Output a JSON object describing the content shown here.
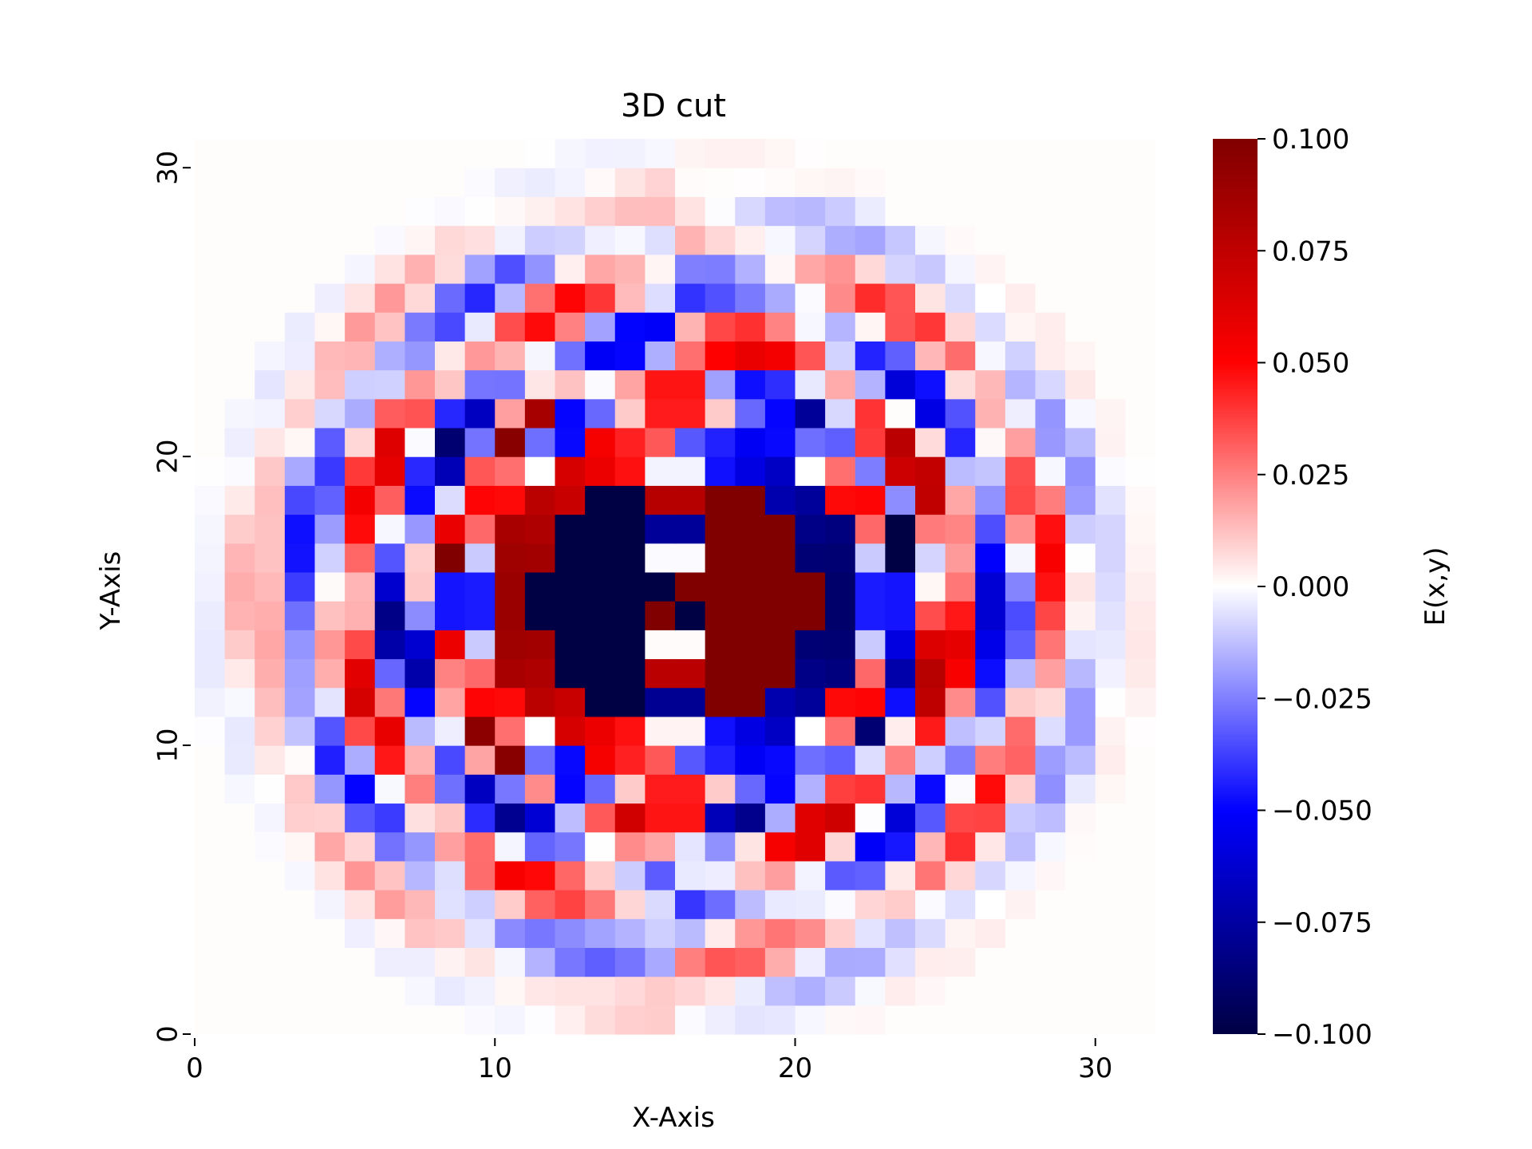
{
  "chart_data": {
    "type": "heatmap",
    "title": "3D cut",
    "xlabel": "X-Axis",
    "ylabel": "Y-Axis",
    "x_range": [
      0,
      32
    ],
    "y_range": [
      0,
      31
    ],
    "x_ticks": [
      0,
      10,
      20,
      30
    ],
    "y_ticks": [
      0,
      10,
      20,
      30
    ],
    "cell_size": 1,
    "grid": false,
    "colormap": "seismic",
    "colorbar": {
      "label": "E(x,y)",
      "min": -0.1,
      "max": 0.1,
      "ticks": [
        0.1,
        0.075,
        0.05,
        0.025,
        0.0,
        -0.025,
        -0.05,
        -0.075,
        -0.1
      ],
      "tick_labels": [
        "0.100",
        "0.075",
        "0.050",
        "0.025",
        "0.000",
        "−0.025",
        "−0.050",
        "−0.075",
        "−0.100"
      ]
    },
    "pattern": {
      "description": "radially symmetric concentric rings of alternating sign inside a circular support; central dipole: strong negative lobe at x≈12–15, strong positive lobe at x≈17–21, y≈11–18; ring signs: r<2 dipole, 2–4 weak, 4–7 ring, 7–10 oscillating checker, 10–12 opposite ring, 12–16 fading; zero outside radius ≈16 from center (16, 15)",
      "center": [
        16,
        15
      ],
      "support_radius": 16.2,
      "amplitude_max": 0.1
    }
  }
}
